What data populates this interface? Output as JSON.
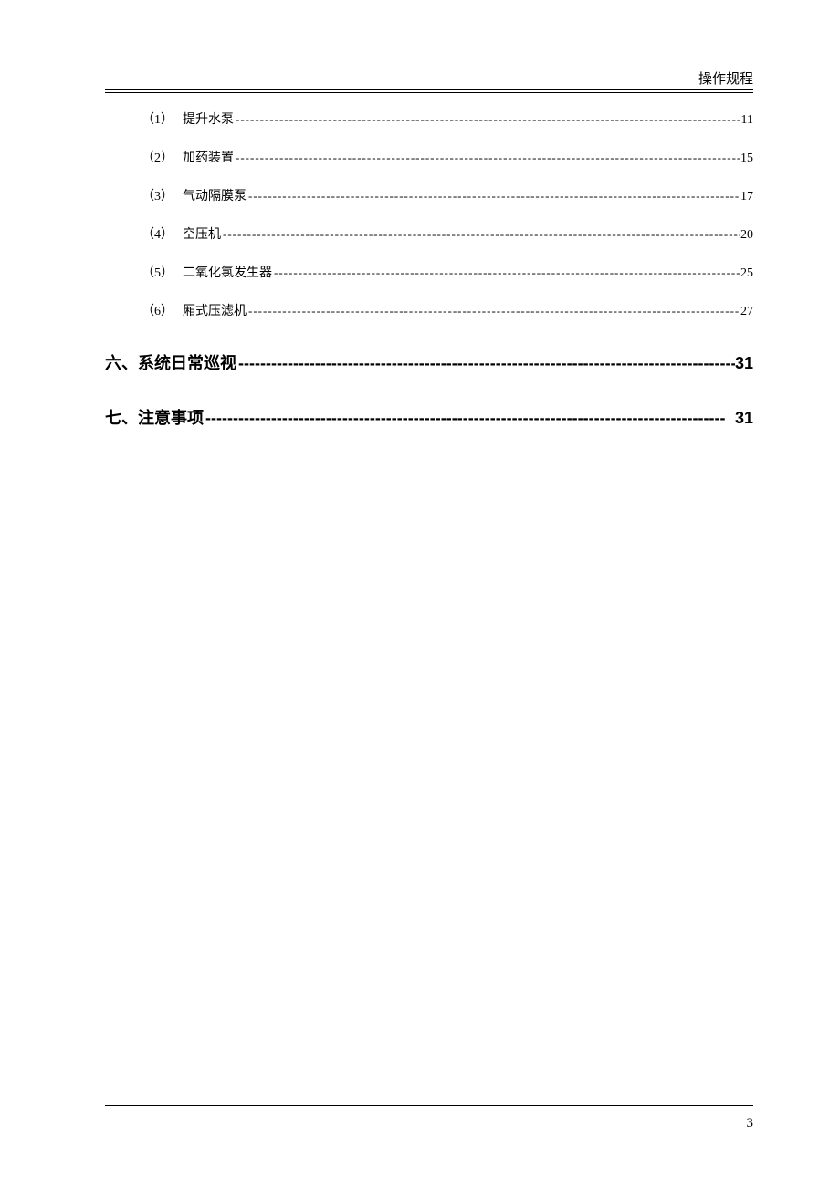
{
  "header": {
    "title": "操作规程"
  },
  "toc": {
    "sub_items": [
      {
        "num": "（1）",
        "label": "提升水泵",
        "page": "11"
      },
      {
        "num": "（2）",
        "label": "加药装置",
        "page": "15"
      },
      {
        "num": "（3）",
        "label": "气动隔膜泵",
        "page": "17"
      },
      {
        "num": "（4）",
        "label": "空压机",
        "page": "20"
      },
      {
        "num": "（5）",
        "label": "二氧化氯发生器",
        "page": "25"
      },
      {
        "num": "（6）",
        "label": "厢式压滤机",
        "page": "27"
      }
    ],
    "sections": [
      {
        "label": "六、系统日常巡视",
        "page": "31"
      },
      {
        "label": "七、注意事项",
        "page": "31"
      }
    ]
  },
  "footer": {
    "page_number": "3"
  },
  "style": {
    "dots_fill": " -----------------------------------------------------------------------------------------------------------------------------------------------",
    "dashes_fill": "-----------------------------------------------------------------------------------------------"
  }
}
